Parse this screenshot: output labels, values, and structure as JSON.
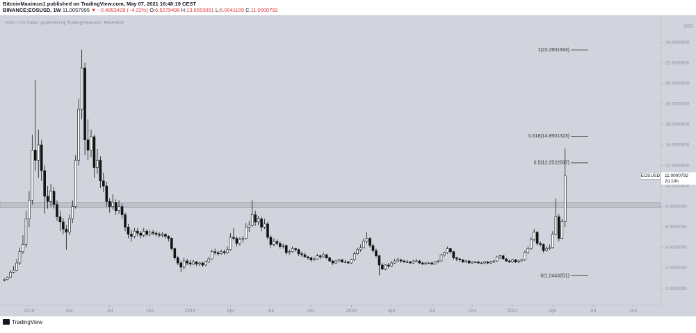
{
  "header": {
    "line1": "BitcoinMaximus1 published on TradingView.com, May 07, 2021 16:48:19 CEST",
    "symbol": "BINANCE:EOSUSD, 1W",
    "last": "11.0057995",
    "change": "▼ −0.4853428 (−4.22%)",
    "quote": [
      {
        "label": "O:",
        "value": "6.5279496"
      },
      {
        "label": "H:",
        "value": "13.6553001"
      },
      {
        "label": "L:",
        "value": "6.0041109"
      },
      {
        "label": "C:",
        "value": "11.0000792"
      }
    ],
    "watermark": "EOS / US Dollar, published by TradingView.com, BINANCE",
    "footer": "TradingView"
  },
  "chart_data": {
    "type": "candlestick",
    "currency": "USD",
    "up_color": "#ffffff",
    "down_color": "#131313",
    "background": "#d1d4dc",
    "xlim": [
      -9.4,
      203.8
    ],
    "ylim": [
      -1.62,
      26.64
    ],
    "yticks": [
      {
        "value": 0,
        "label": "0.0000000"
      },
      {
        "value": 2,
        "label": "2.0000000"
      },
      {
        "value": 4,
        "label": "4.0000000"
      },
      {
        "value": 6,
        "label": "6.0000000"
      },
      {
        "value": 8,
        "label": "8.0000000"
      },
      {
        "value": 10,
        "label": "10.0000000"
      },
      {
        "value": 12,
        "label": "12.0000000"
      },
      {
        "value": 14,
        "label": "14.0000000"
      },
      {
        "value": 16,
        "label": "16.0000000"
      },
      {
        "value": 18,
        "label": "18.0000000"
      },
      {
        "value": 20,
        "label": "20.0000000"
      },
      {
        "value": 22,
        "label": "22.0000000"
      },
      {
        "value": 24,
        "label": "24.0000000"
      }
    ],
    "xticks": [
      {
        "value": 0,
        "label": "2018"
      },
      {
        "value": 13,
        "label": "Apr"
      },
      {
        "value": 26,
        "label": "Jul"
      },
      {
        "value": 39,
        "label": "Oct"
      },
      {
        "value": 52,
        "label": "2019"
      },
      {
        "value": 65,
        "label": "Apr"
      },
      {
        "value": 78,
        "label": "Jul"
      },
      {
        "value": 91,
        "label": "Oct"
      },
      {
        "value": 104,
        "label": "2020"
      },
      {
        "value": 117,
        "label": "Apr"
      },
      {
        "value": 130,
        "label": "Jul"
      },
      {
        "value": 143,
        "label": "Oct"
      },
      {
        "value": 156,
        "label": "2021"
      },
      {
        "value": 169,
        "label": "Apr"
      },
      {
        "value": 182,
        "label": "Jul"
      },
      {
        "value": 195,
        "label": "Oct"
      }
    ],
    "zone": [
      7.9,
      8.4
    ],
    "zone_color": "#9a9da6",
    "fib": [
      {
        "label": "1(23.2601943)",
        "value": 23.2601943
      },
      {
        "label": "0.618(14.8501323)",
        "value": 14.8501323
      },
      {
        "label": "0.5(12.2522597)",
        "value": 12.2522597
      },
      {
        "label": "0(1.2443251)",
        "value": 1.2443251
      }
    ],
    "price_line": {
      "symbol": "EOSUSD",
      "value": 11.0000792,
      "countdown": "2d 10h"
    },
    "x": [
      -8,
      -7,
      -6,
      -5,
      -4,
      -3,
      -2,
      -1,
      0,
      1,
      2,
      3,
      4,
      5,
      6,
      7,
      8,
      9,
      10,
      11,
      12,
      13,
      14,
      15,
      16,
      17,
      18,
      19,
      20,
      21,
      22,
      23,
      24,
      25,
      26,
      27,
      28,
      29,
      30,
      31,
      32,
      33,
      34,
      35,
      36,
      37,
      38,
      39,
      40,
      41,
      42,
      43,
      44,
      45,
      46,
      47,
      48,
      49,
      50,
      51,
      52,
      53,
      54,
      55,
      56,
      57,
      58,
      59,
      60,
      61,
      62,
      63,
      64,
      65,
      66,
      67,
      68,
      69,
      70,
      71,
      72,
      73,
      74,
      75,
      76,
      77,
      78,
      79,
      80,
      81,
      82,
      83,
      84,
      85,
      86,
      87,
      88,
      89,
      90,
      91,
      92,
      93,
      94,
      95,
      96,
      97,
      98,
      99,
      100,
      101,
      102,
      103,
      104,
      105,
      106,
      107,
      108,
      109,
      110,
      111,
      112,
      113,
      114,
      115,
      116,
      117,
      118,
      119,
      120,
      121,
      122,
      123,
      124,
      125,
      126,
      127,
      128,
      129,
      130,
      131,
      132,
      133,
      134,
      135,
      136,
      137,
      138,
      139,
      140,
      141,
      142,
      143,
      144,
      145,
      146,
      147,
      148,
      149,
      150,
      151,
      152,
      153,
      154,
      155,
      156,
      157,
      158,
      159,
      160,
      161,
      162,
      163,
      164,
      165,
      166,
      167,
      168,
      169,
      170,
      171,
      172,
      173
    ],
    "ohlc": [
      [
        0.8,
        1.0,
        0.7,
        0.9
      ],
      [
        0.9,
        1.2,
        0.8,
        1.1
      ],
      [
        1.1,
        1.8,
        1.0,
        1.6
      ],
      [
        1.6,
        2.2,
        1.5,
        1.8
      ],
      [
        1.8,
        2.9,
        1.7,
        2.5
      ],
      [
        2.5,
        4.0,
        2.3,
        3.6
      ],
      [
        3.6,
        5.2,
        3.4,
        4.3
      ],
      [
        4.3,
        7.6,
        4.0,
        6.8
      ],
      [
        6.8,
        9.5,
        6.0,
        8.6
      ],
      [
        8.6,
        15.0,
        8.2,
        13.5
      ],
      [
        13.5,
        20.3,
        11.5,
        12.5
      ],
      [
        12.5,
        15.5,
        10.8,
        14.0
      ],
      [
        14.0,
        14.5,
        10.5,
        11.5
      ],
      [
        11.5,
        12.0,
        7.3,
        9.0
      ],
      [
        9.0,
        10.0,
        7.8,
        8.5
      ],
      [
        8.5,
        10.2,
        8.0,
        9.5
      ],
      [
        9.5,
        9.9,
        7.8,
        8.2
      ],
      [
        8.2,
        8.6,
        6.6,
        7.0
      ],
      [
        7.0,
        7.6,
        5.6,
        6.5
      ],
      [
        6.5,
        6.9,
        5.3,
        5.8
      ],
      [
        5.8,
        6.2,
        3.8,
        5.5
      ],
      [
        5.5,
        7.2,
        5.2,
        6.8
      ],
      [
        6.8,
        8.6,
        6.4,
        8.0
      ],
      [
        8.0,
        13.0,
        7.8,
        12.5
      ],
      [
        12.5,
        18.5,
        12.0,
        17.5
      ],
      [
        17.5,
        23.3,
        16.5,
        21.5
      ],
      [
        21.5,
        22.0,
        13.0,
        14.5
      ],
      [
        14.5,
        16.5,
        12.5,
        13.5
      ],
      [
        13.5,
        15.5,
        12.8,
        14.8
      ],
      [
        14.8,
        15.0,
        10.8,
        11.8
      ],
      [
        11.8,
        13.6,
        11.2,
        12.5
      ],
      [
        12.5,
        12.9,
        9.8,
        10.5
      ],
      [
        10.5,
        11.3,
        9.4,
        10.0
      ],
      [
        10.0,
        10.4,
        8.0,
        8.5
      ],
      [
        8.5,
        8.8,
        7.4,
        8.0
      ],
      [
        8.0,
        9.2,
        7.7,
        8.4
      ],
      [
        8.4,
        8.7,
        7.2,
        7.6
      ],
      [
        7.6,
        8.6,
        7.3,
        8.0
      ],
      [
        8.0,
        8.3,
        6.8,
        7.2
      ],
      [
        7.2,
        7.4,
        5.6,
        6.0
      ],
      [
        6.0,
        6.3,
        4.9,
        5.3
      ],
      [
        5.3,
        5.7,
        4.6,
        5.1
      ],
      [
        5.1,
        5.9,
        4.9,
        5.6
      ],
      [
        5.6,
        5.9,
        5.1,
        5.4
      ],
      [
        5.4,
        5.6,
        4.9,
        5.2
      ],
      [
        5.2,
        5.9,
        5.0,
        5.6
      ],
      [
        5.6,
        5.8,
        5.1,
        5.3
      ],
      [
        5.3,
        5.7,
        5.1,
        5.5
      ],
      [
        5.5,
        5.7,
        5.2,
        5.4
      ],
      [
        5.4,
        5.6,
        5.1,
        5.3
      ],
      [
        5.3,
        5.5,
        5.0,
        5.2
      ],
      [
        5.2,
        5.5,
        5.0,
        5.3
      ],
      [
        5.3,
        5.4,
        4.9,
        5.1
      ],
      [
        5.1,
        5.2,
        4.6,
        4.9
      ],
      [
        4.9,
        5.0,
        3.7,
        3.9
      ],
      [
        3.9,
        4.0,
        2.8,
        3.0
      ],
      [
        3.0,
        3.2,
        2.3,
        2.5
      ],
      [
        2.5,
        2.7,
        1.6,
        2.1
      ],
      [
        2.1,
        3.0,
        1.9,
        2.7
      ],
      [
        2.7,
        2.9,
        2.3,
        2.5
      ],
      [
        2.5,
        2.8,
        2.2,
        2.4
      ],
      [
        2.4,
        2.8,
        2.3,
        2.6
      ],
      [
        2.6,
        2.7,
        2.2,
        2.4
      ],
      [
        2.4,
        2.6,
        2.2,
        2.5
      ],
      [
        2.5,
        2.6,
        2.1,
        2.3
      ],
      [
        2.3,
        2.7,
        2.2,
        2.6
      ],
      [
        2.6,
        3.1,
        2.5,
        2.9
      ],
      [
        2.9,
        3.8,
        2.8,
        3.6
      ],
      [
        3.6,
        3.9,
        3.3,
        3.5
      ],
      [
        3.5,
        3.7,
        3.2,
        3.4
      ],
      [
        3.4,
        3.8,
        3.3,
        3.6
      ],
      [
        3.6,
        3.8,
        3.3,
        3.5
      ],
      [
        3.5,
        4.1,
        3.4,
        3.8
      ],
      [
        3.8,
        5.4,
        3.7,
        5.0
      ],
      [
        5.0,
        5.9,
        4.7,
        4.9
      ],
      [
        4.9,
        5.1,
        4.1,
        4.4
      ],
      [
        4.4,
        5.0,
        4.2,
        4.8
      ],
      [
        4.8,
        5.1,
        4.5,
        4.9
      ],
      [
        4.9,
        6.4,
        4.8,
        6.0
      ],
      [
        6.0,
        6.6,
        5.5,
        6.2
      ],
      [
        6.2,
        8.6,
        6.0,
        7.2
      ],
      [
        7.2,
        7.6,
        6.1,
        6.5
      ],
      [
        6.5,
        7.1,
        6.2,
        6.8
      ],
      [
        6.8,
        7.0,
        5.6,
        6.0
      ],
      [
        6.0,
        6.8,
        5.8,
        6.3
      ],
      [
        6.3,
        6.5,
        4.8,
        5.0
      ],
      [
        5.0,
        5.2,
        4.0,
        4.3
      ],
      [
        4.3,
        4.9,
        4.1,
        4.6
      ],
      [
        4.6,
        4.8,
        4.2,
        4.4
      ],
      [
        4.4,
        4.6,
        3.9,
        4.1
      ],
      [
        4.1,
        4.4,
        3.9,
        4.2
      ],
      [
        4.2,
        4.3,
        3.3,
        3.5
      ],
      [
        3.5,
        3.8,
        3.3,
        3.6
      ],
      [
        3.6,
        4.1,
        3.5,
        3.9
      ],
      [
        3.9,
        4.0,
        3.6,
        3.8
      ],
      [
        3.8,
        3.9,
        3.2,
        3.4
      ],
      [
        3.4,
        3.6,
        3.1,
        3.3
      ],
      [
        3.3,
        3.5,
        3.0,
        3.1
      ],
      [
        3.1,
        3.2,
        2.8,
        3.0
      ],
      [
        3.0,
        3.1,
        2.6,
        2.8
      ],
      [
        2.8,
        3.1,
        2.7,
        2.9
      ],
      [
        2.9,
        3.4,
        2.8,
        3.2
      ],
      [
        3.2,
        3.3,
        2.9,
        3.1
      ],
      [
        3.1,
        3.5,
        3.0,
        3.3
      ],
      [
        3.3,
        3.4,
        2.9,
        3.0
      ],
      [
        3.0,
        3.1,
        2.6,
        2.7
      ],
      [
        2.7,
        2.8,
        2.3,
        2.5
      ],
      [
        2.5,
        2.8,
        2.4,
        2.7
      ],
      [
        2.7,
        2.9,
        2.6,
        2.8
      ],
      [
        2.8,
        2.9,
        2.5,
        2.6
      ],
      [
        2.6,
        2.8,
        2.5,
        2.6
      ],
      [
        2.6,
        2.7,
        2.4,
        2.5
      ],
      [
        2.5,
        2.9,
        2.4,
        2.8
      ],
      [
        2.8,
        3.6,
        2.7,
        3.4
      ],
      [
        3.4,
        4.0,
        3.3,
        3.8
      ],
      [
        3.8,
        4.3,
        3.6,
        4.0
      ],
      [
        4.0,
        4.9,
        3.9,
        4.6
      ],
      [
        4.6,
        5.5,
        4.4,
        4.9
      ],
      [
        4.9,
        5.0,
        4.0,
        4.2
      ],
      [
        4.2,
        4.4,
        3.5,
        3.7
      ],
      [
        3.7,
        3.9,
        3.0,
        3.2
      ],
      [
        3.2,
        3.3,
        1.3,
        2.3
      ],
      [
        2.3,
        2.5,
        1.8,
        1.9
      ],
      [
        1.9,
        2.4,
        1.8,
        2.3
      ],
      [
        2.3,
        2.5,
        2.0,
        2.2
      ],
      [
        2.2,
        2.7,
        2.1,
        2.5
      ],
      [
        2.5,
        2.9,
        2.4,
        2.7
      ],
      [
        2.7,
        3.0,
        2.6,
        2.8
      ],
      [
        2.8,
        2.9,
        2.5,
        2.7
      ],
      [
        2.7,
        2.8,
        2.5,
        2.6
      ],
      [
        2.6,
        2.8,
        2.5,
        2.6
      ],
      [
        2.6,
        2.7,
        2.4,
        2.5
      ],
      [
        2.5,
        2.8,
        2.4,
        2.7
      ],
      [
        2.7,
        2.9,
        2.6,
        2.7
      ],
      [
        2.7,
        2.8,
        2.4,
        2.5
      ],
      [
        2.5,
        2.6,
        2.3,
        2.4
      ],
      [
        2.4,
        2.6,
        2.3,
        2.5
      ],
      [
        2.5,
        2.6,
        2.4,
        2.5
      ],
      [
        2.5,
        2.6,
        2.3,
        2.4
      ],
      [
        2.4,
        2.7,
        2.3,
        2.6
      ],
      [
        2.6,
        2.8,
        2.5,
        2.7
      ],
      [
        2.7,
        3.4,
        2.6,
        3.3
      ],
      [
        3.3,
        3.6,
        3.1,
        3.5
      ],
      [
        3.5,
        4.1,
        3.4,
        3.9
      ],
      [
        3.9,
        4.0,
        3.4,
        3.6
      ],
      [
        3.6,
        3.7,
        2.8,
        3.0
      ],
      [
        3.0,
        3.1,
        2.7,
        2.9
      ],
      [
        2.9,
        3.0,
        2.6,
        2.8
      ],
      [
        2.8,
        2.9,
        2.5,
        2.6
      ],
      [
        2.6,
        2.8,
        2.5,
        2.7
      ],
      [
        2.7,
        2.8,
        2.4,
        2.5
      ],
      [
        2.5,
        2.7,
        2.4,
        2.6
      ],
      [
        2.6,
        2.7,
        2.5,
        2.6
      ],
      [
        2.6,
        2.7,
        2.4,
        2.5
      ],
      [
        2.5,
        2.6,
        2.4,
        2.5
      ],
      [
        2.5,
        2.7,
        2.4,
        2.6
      ],
      [
        2.6,
        2.7,
        2.4,
        2.5
      ],
      [
        2.5,
        2.7,
        2.4,
        2.6
      ],
      [
        2.6,
        2.8,
        2.5,
        2.7
      ],
      [
        2.7,
        3.2,
        2.6,
        3.1
      ],
      [
        3.1,
        3.3,
        2.9,
        3.2
      ],
      [
        3.2,
        3.3,
        2.8,
        2.9
      ],
      [
        2.9,
        3.0,
        2.6,
        2.7
      ],
      [
        2.7,
        2.8,
        2.5,
        2.6
      ],
      [
        2.6,
        2.9,
        2.5,
        2.8
      ],
      [
        2.8,
        2.9,
        2.5,
        2.6
      ],
      [
        2.6,
        2.8,
        2.5,
        2.7
      ],
      [
        2.7,
        2.9,
        2.6,
        2.8
      ],
      [
        2.8,
        3.7,
        2.7,
        3.5
      ],
      [
        3.5,
        4.1,
        3.4,
        3.9
      ],
      [
        3.9,
        5.0,
        3.8,
        4.8
      ],
      [
        4.8,
        5.8,
        4.6,
        5.5
      ],
      [
        5.5,
        5.6,
        4.2,
        4.4
      ],
      [
        4.4,
        4.6,
        4.1,
        4.3
      ],
      [
        4.3,
        4.4,
        3.5,
        3.7
      ],
      [
        3.7,
        4.1,
        3.6,
        3.9
      ],
      [
        3.9,
        4.3,
        3.8,
        4.0
      ],
      [
        4.0,
        5.6,
        3.9,
        5.3
      ],
      [
        5.3,
        8.8,
        5.2,
        7.0
      ],
      [
        7.0,
        7.3,
        4.6,
        4.9
      ],
      [
        4.9,
        6.8,
        4.8,
        6.53
      ],
      [
        6.5279496,
        13.6553001,
        6.0041109,
        11.0000792
      ]
    ]
  }
}
